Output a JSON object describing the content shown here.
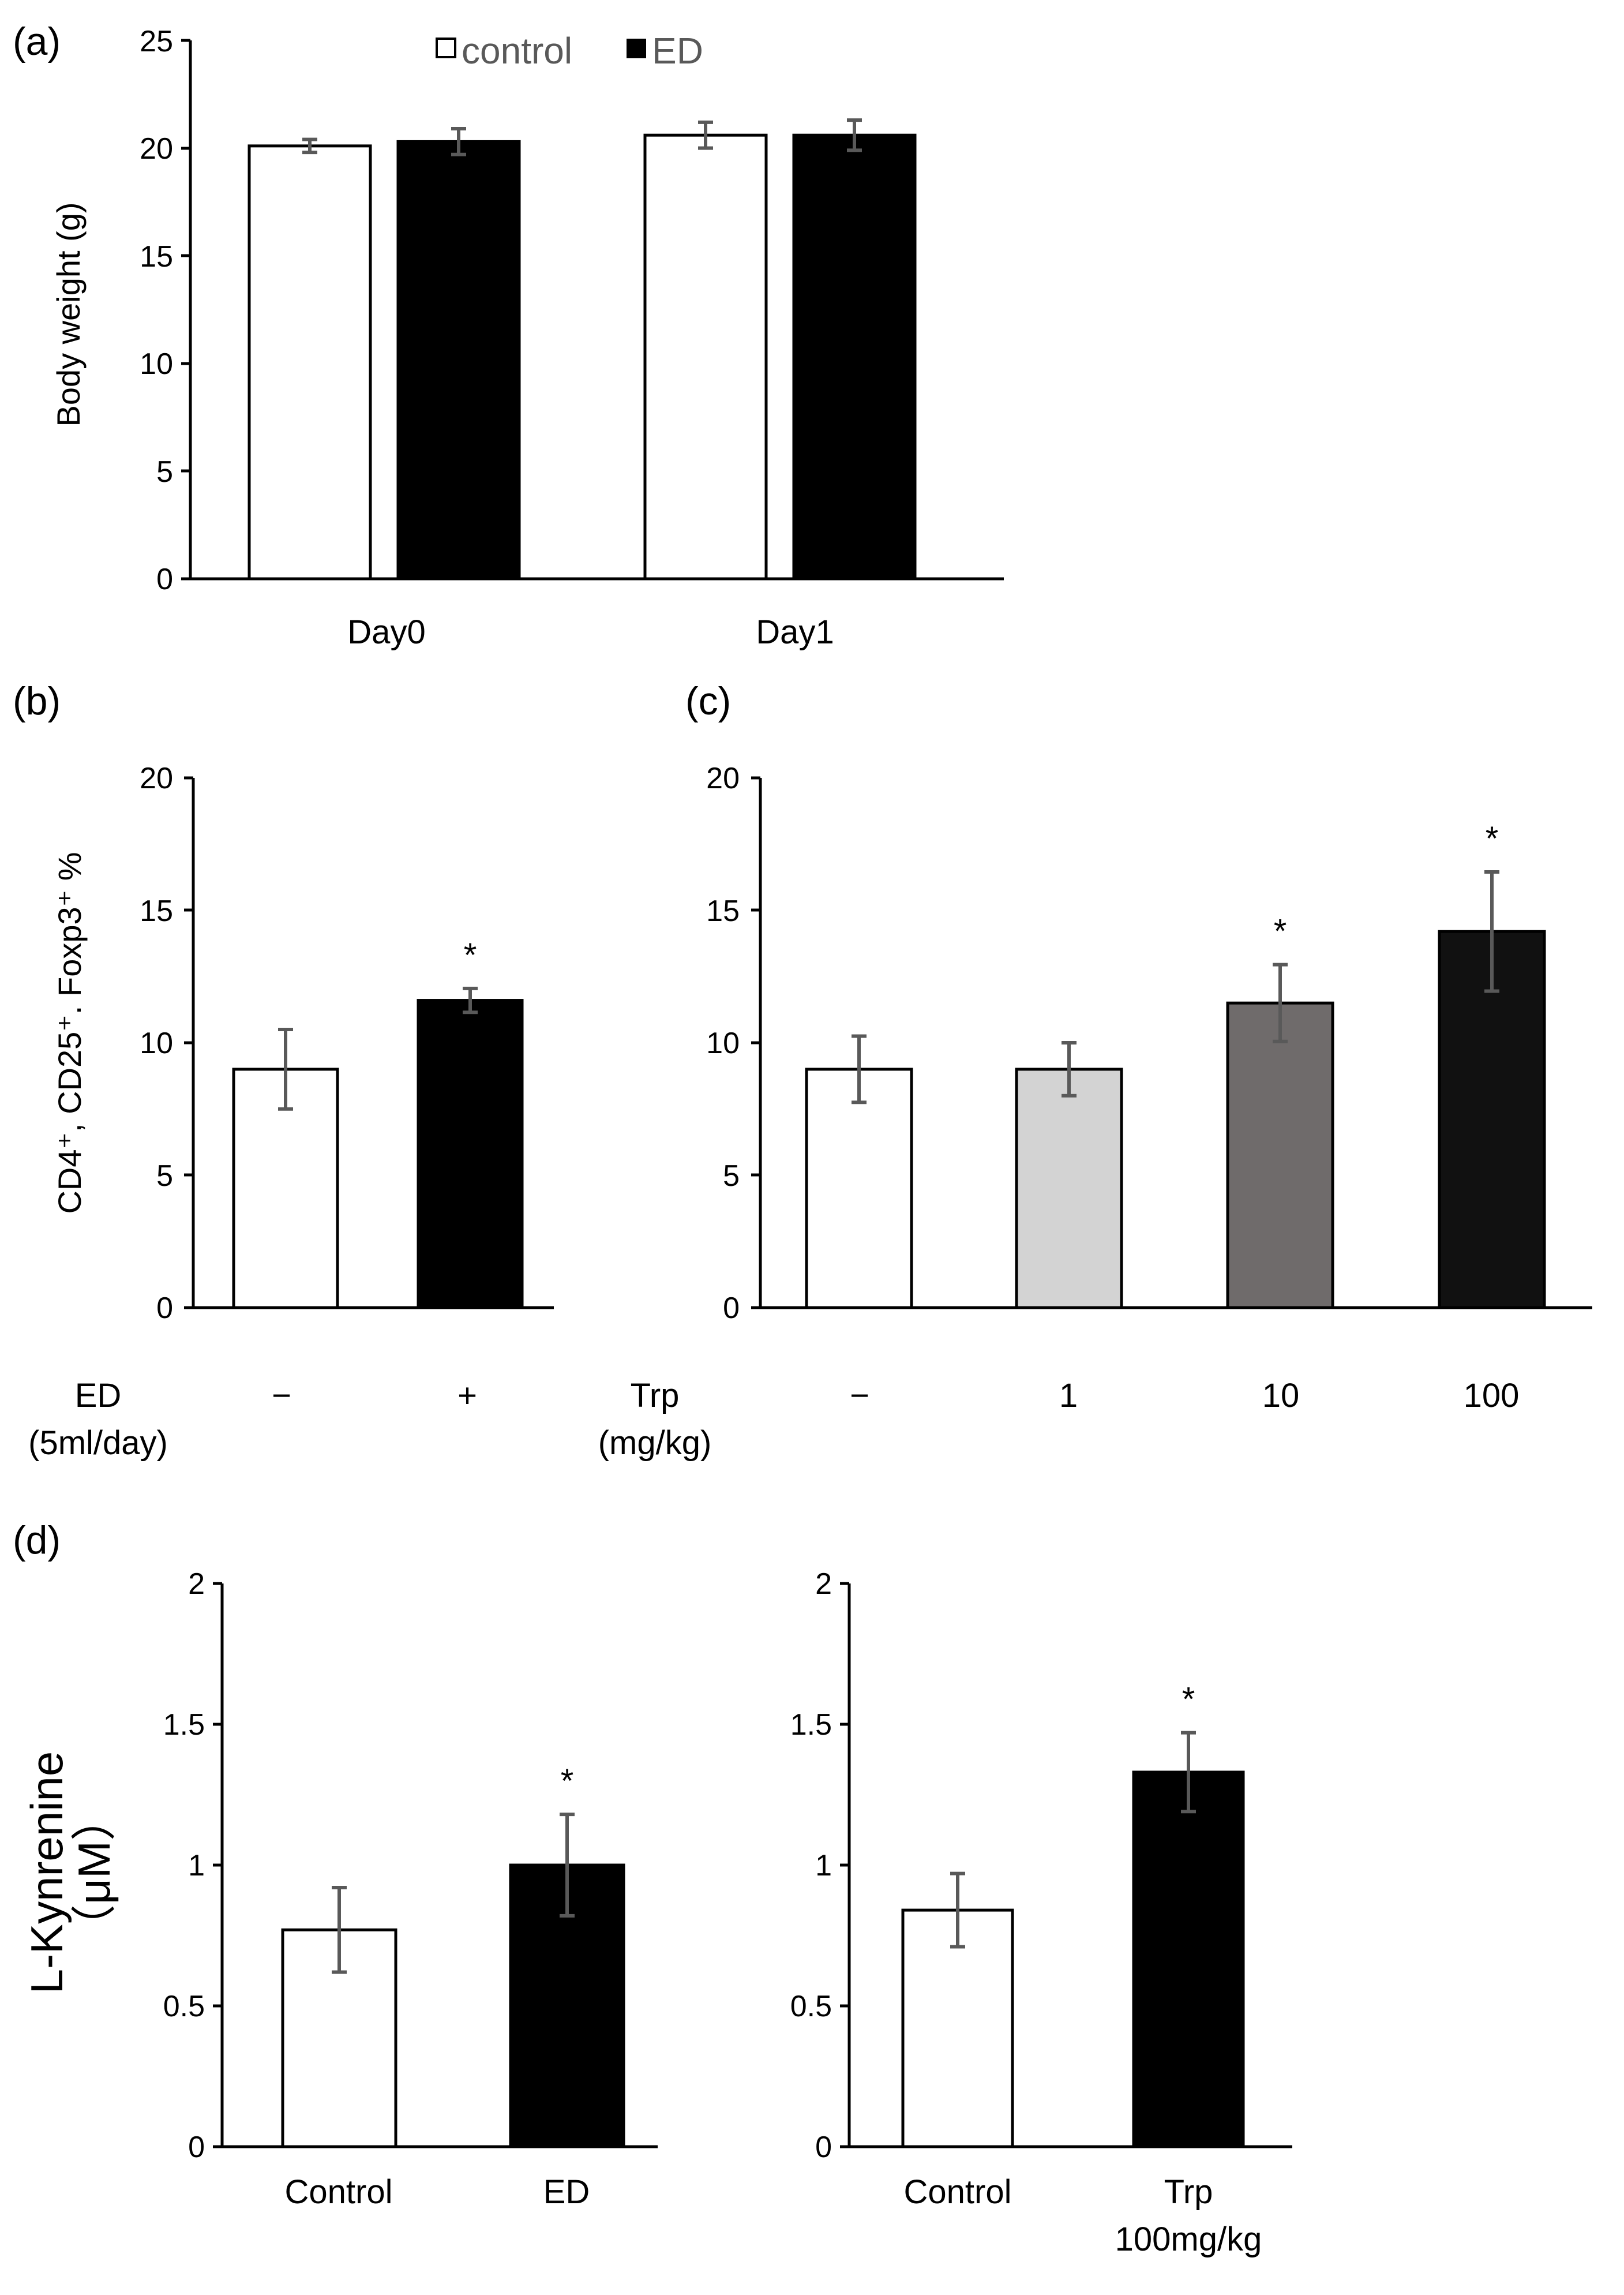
{
  "colors": {
    "white": "#ffffff",
    "black": "#000000",
    "light_gray": "#d3d3d3",
    "dark_gray": "#6f6b6b",
    "near_black": "#111111",
    "error_bar": "#595959"
  },
  "chart_data": [
    {
      "id": "a",
      "panel_label": "(a)",
      "type": "bar",
      "ylabel": "Body weight (g)",
      "ylim": [
        0,
        25
      ],
      "yticks": [
        "0",
        "5",
        "10",
        "15",
        "20",
        "25"
      ],
      "categories": [
        "Day0",
        "Day1"
      ],
      "legend": [
        {
          "label": "control",
          "color": "#ffffff"
        },
        {
          "label": "ED",
          "color": "#000000"
        }
      ],
      "series": [
        {
          "name": "control",
          "values": [
            20.1,
            20.6
          ],
          "errors": [
            0.3,
            0.6
          ],
          "color": "#ffffff"
        },
        {
          "name": "ED",
          "values": [
            20.3,
            20.6
          ],
          "errors": [
            0.6,
            0.7
          ],
          "color": "#000000"
        }
      ]
    },
    {
      "id": "b",
      "panel_label": "(b)",
      "type": "bar",
      "ylabel": "CD4⁺, CD25⁺. Foxp3⁺ %",
      "ylim": [
        0,
        20
      ],
      "yticks": [
        "0",
        "5",
        "10",
        "15",
        "20"
      ],
      "condition_label": [
        "ED",
        "(5ml/day)"
      ],
      "bars": [
        {
          "cat": "−",
          "value": 9.0,
          "error": 1.5,
          "color": "#ffffff",
          "sig": ""
        },
        {
          "cat": "+",
          "value": 11.6,
          "error": 0.45,
          "color": "#000000",
          "sig": "*"
        }
      ]
    },
    {
      "id": "c",
      "panel_label": "(c)",
      "type": "bar",
      "ylabel": "",
      "ylim": [
        0,
        20
      ],
      "yticks": [
        "0",
        "5",
        "10",
        "15",
        "20"
      ],
      "condition_label": [
        "Trp",
        "(mg/kg)"
      ],
      "bars": [
        {
          "cat": "−",
          "value": 9.0,
          "error": 1.25,
          "color": "#ffffff",
          "sig": ""
        },
        {
          "cat": "1",
          "value": 9.0,
          "error": 1.0,
          "color": "#d3d3d3",
          "sig": ""
        },
        {
          "cat": "10",
          "value": 11.5,
          "error": 1.45,
          "color": "#6f6b6b",
          "sig": "*"
        },
        {
          "cat": "100",
          "value": 14.2,
          "error": 2.25,
          "color": "#111111",
          "sig": "*"
        }
      ]
    },
    {
      "id": "d1",
      "panel_label": "(d)",
      "type": "bar",
      "ylabel": "L-Kynrenine",
      "yunit": "（μM）",
      "ylim": [
        0,
        2
      ],
      "yticks": [
        "0",
        "0.5",
        "1",
        "1.5",
        "2"
      ],
      "bars": [
        {
          "cat": "Control",
          "value": 0.77,
          "error": 0.15,
          "color": "#ffffff",
          "sig": ""
        },
        {
          "cat": "ED",
          "value": 1.0,
          "error": 0.18,
          "color": "#000000",
          "sig": "*"
        }
      ]
    },
    {
      "id": "d2",
      "panel_label": "",
      "type": "bar",
      "ylabel": "",
      "ylim": [
        0,
        2
      ],
      "yticks": [
        "0",
        "0.5",
        "1",
        "1.5",
        "2"
      ],
      "bars": [
        {
          "cat": "Control",
          "value": 0.84,
          "error": 0.13,
          "color": "#ffffff",
          "sig": ""
        },
        {
          "cat": "Trp",
          "cat2": "100mg/kg",
          "value": 1.33,
          "error": 0.14,
          "color": "#000000",
          "sig": "*"
        }
      ]
    }
  ]
}
